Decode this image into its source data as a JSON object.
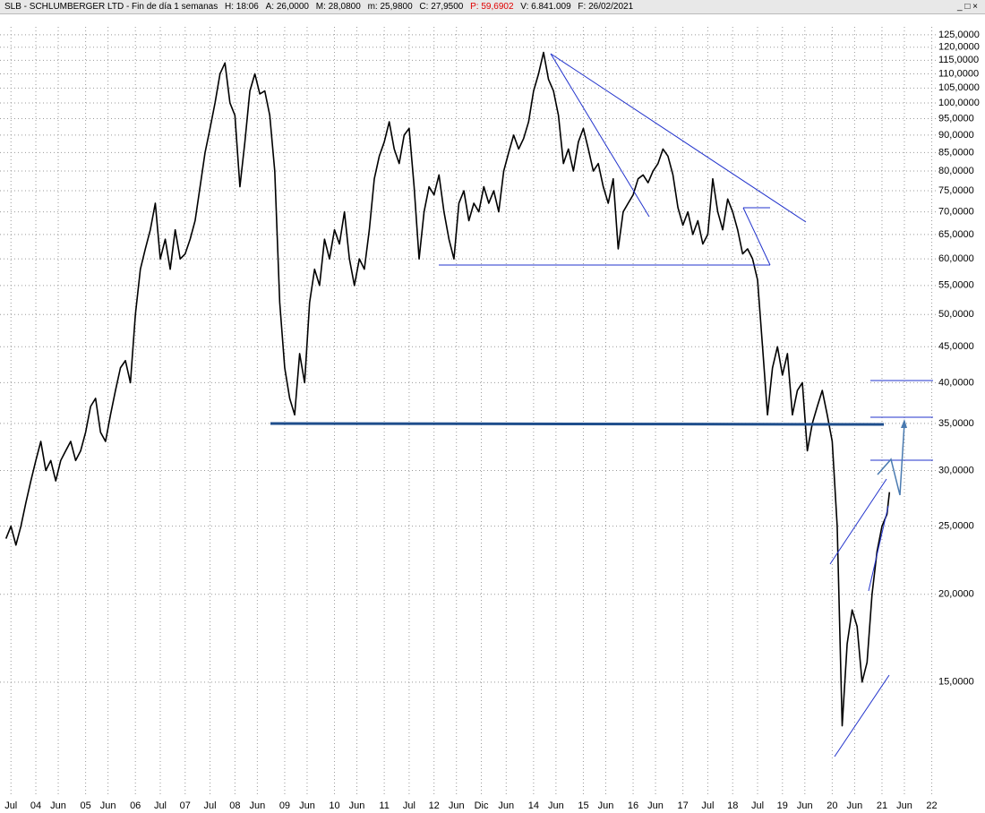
{
  "header": {
    "title": "SLB - SCHLUMBERGER LTD - Fin de día 1 semanas",
    "fields": [
      "H: 18:06",
      "A: 26,0000",
      "M: 28,0800",
      "m: 25,9800",
      "C: 27,9500",
      "P: 59,6902",
      "V: 6.841.009",
      "F: 26/02/2021"
    ]
  },
  "chart_data": {
    "type": "line",
    "color": "#000000",
    "log_scale": true,
    "grid": true,
    "x": [
      2003.4,
      2003.5,
      2003.6,
      2003.7,
      2003.8,
      2003.9,
      2004.0,
      2004.1,
      2004.2,
      2004.3,
      2004.4,
      2004.5,
      2004.6,
      2004.7,
      2004.8,
      2004.9,
      2005.0,
      2005.1,
      2005.2,
      2005.3,
      2005.4,
      2005.5,
      2005.6,
      2005.7,
      2005.8,
      2005.9,
      2006.0,
      2006.1,
      2006.2,
      2006.3,
      2006.4,
      2006.5,
      2006.6,
      2006.7,
      2006.8,
      2006.9,
      2007.0,
      2007.1,
      2007.2,
      2007.3,
      2007.4,
      2007.5,
      2007.6,
      2007.7,
      2007.8,
      2007.9,
      2008.0,
      2008.1,
      2008.2,
      2008.3,
      2008.4,
      2008.5,
      2008.6,
      2008.7,
      2008.8,
      2008.9,
      2009.0,
      2009.1,
      2009.2,
      2009.3,
      2009.4,
      2009.5,
      2009.6,
      2009.7,
      2009.8,
      2009.9,
      2010.0,
      2010.1,
      2010.2,
      2010.3,
      2010.4,
      2010.5,
      2010.6,
      2010.7,
      2010.8,
      2010.9,
      2011.0,
      2011.1,
      2011.2,
      2011.3,
      2011.4,
      2011.5,
      2011.6,
      2011.7,
      2011.8,
      2011.9,
      2012.0,
      2012.1,
      2012.2,
      2012.3,
      2012.4,
      2012.5,
      2012.6,
      2012.7,
      2012.8,
      2012.9,
      2013.0,
      2013.1,
      2013.2,
      2013.3,
      2013.4,
      2013.5,
      2013.6,
      2013.7,
      2013.8,
      2013.9,
      2014.0,
      2014.1,
      2014.2,
      2014.3,
      2014.4,
      2014.5,
      2014.6,
      2014.7,
      2014.8,
      2014.9,
      2015.0,
      2015.1,
      2015.2,
      2015.3,
      2015.4,
      2015.5,
      2015.6,
      2015.7,
      2015.8,
      2015.9,
      2016.0,
      2016.1,
      2016.2,
      2016.3,
      2016.4,
      2016.5,
      2016.6,
      2016.7,
      2016.8,
      2016.9,
      2017.0,
      2017.1,
      2017.2,
      2017.3,
      2017.4,
      2017.5,
      2017.6,
      2017.7,
      2017.8,
      2017.9,
      2018.0,
      2018.1,
      2018.2,
      2018.3,
      2018.4,
      2018.5,
      2018.6,
      2018.7,
      2018.8,
      2018.9,
      2019.0,
      2019.1,
      2019.2,
      2019.3,
      2019.4,
      2019.5,
      2019.6,
      2019.7,
      2019.8,
      2019.9,
      2020.0,
      2020.1,
      2020.2,
      2020.3,
      2020.4,
      2020.5,
      2020.6,
      2020.7,
      2020.8,
      2020.9,
      2021.0,
      2021.1,
      2021.15
    ],
    "values": [
      24,
      25,
      23.5,
      25,
      27,
      29,
      31,
      33,
      30,
      31,
      29,
      31,
      32,
      33,
      31,
      32,
      34,
      37,
      38,
      34,
      33,
      36,
      39,
      42,
      43,
      40,
      50,
      58,
      62,
      66,
      72,
      60,
      64,
      58,
      66,
      60,
      61,
      64,
      68,
      76,
      85,
      92,
      100,
      110,
      114,
      100,
      96,
      76,
      88,
      104,
      110,
      103,
      104,
      96,
      80,
      52,
      42,
      38,
      36,
      44,
      40,
      52,
      58,
      55,
      64,
      60,
      66,
      63,
      70,
      60,
      55,
      60,
      58,
      66,
      78,
      84,
      88,
      94,
      86,
      82,
      90,
      92,
      76,
      60,
      70,
      76,
      74,
      79,
      70,
      64,
      60,
      72,
      75,
      68,
      72,
      70,
      76,
      72,
      75,
      70,
      80,
      85,
      90,
      86,
      89,
      94,
      104,
      110,
      118,
      108,
      104,
      96,
      82,
      86,
      80,
      88,
      92,
      86,
      80,
      82,
      76,
      72,
      78,
      62,
      70,
      72,
      74,
      78,
      79,
      77,
      80,
      82,
      86,
      84,
      79,
      71,
      67,
      70,
      65,
      68,
      63,
      65,
      78,
      70,
      66,
      73,
      70,
      66,
      61,
      62,
      60,
      56,
      45,
      36,
      42,
      45,
      41,
      44,
      36,
      39,
      40,
      32,
      35,
      37,
      39,
      36,
      33,
      25,
      13,
      17,
      19,
      18,
      15,
      16,
      20,
      23,
      25,
      26,
      27.95
    ],
    "xlim": [
      2003.28,
      2022.08
    ],
    "xticks": [
      {
        "value": 2003.5,
        "label": "Jul"
      },
      {
        "value": 2004,
        "label": "04"
      },
      {
        "value": 2004.45,
        "label": "Jun"
      },
      {
        "value": 2005,
        "label": "05"
      },
      {
        "value": 2005.45,
        "label": "Jun"
      },
      {
        "value": 2006,
        "label": "06"
      },
      {
        "value": 2006.5,
        "label": "Jul"
      },
      {
        "value": 2007,
        "label": "07"
      },
      {
        "value": 2007.5,
        "label": "Jul"
      },
      {
        "value": 2008,
        "label": "08"
      },
      {
        "value": 2008.45,
        "label": "Jun"
      },
      {
        "value": 2009,
        "label": "09"
      },
      {
        "value": 2009.45,
        "label": "Jun"
      },
      {
        "value": 2010,
        "label": "10"
      },
      {
        "value": 2010.45,
        "label": "Jun"
      },
      {
        "value": 2011,
        "label": "11"
      },
      {
        "value": 2011.5,
        "label": "Jul"
      },
      {
        "value": 2012,
        "label": "12"
      },
      {
        "value": 2012.45,
        "label": "Jun"
      },
      {
        "value": 2012.95,
        "label": "Dic"
      },
      {
        "value": 2013.45,
        "label": "Jun"
      },
      {
        "value": 2014,
        "label": "14"
      },
      {
        "value": 2014.45,
        "label": "Jun"
      },
      {
        "value": 2015,
        "label": "15"
      },
      {
        "value": 2015.45,
        "label": "Jun"
      },
      {
        "value": 2016,
        "label": "16"
      },
      {
        "value": 2016.45,
        "label": "Jun"
      },
      {
        "value": 2017,
        "label": "17"
      },
      {
        "value": 2017.5,
        "label": "Jul"
      },
      {
        "value": 2018,
        "label": "18"
      },
      {
        "value": 2018.5,
        "label": "Jul"
      },
      {
        "value": 2019,
        "label": "19"
      },
      {
        "value": 2019.45,
        "label": "Jun"
      },
      {
        "value": 2020,
        "label": "20"
      },
      {
        "value": 2020.45,
        "label": "Jun"
      },
      {
        "value": 2021,
        "label": "21"
      },
      {
        "value": 2021.45,
        "label": "Jun"
      },
      {
        "value": 2022,
        "label": "22"
      }
    ],
    "ylim": [
      10.3,
      128.3
    ],
    "yticks": [
      {
        "value": 15,
        "label": "15,0000"
      },
      {
        "value": 20,
        "label": "20,0000"
      },
      {
        "value": 25,
        "label": "25,0000"
      },
      {
        "value": 30,
        "label": "30,0000"
      },
      {
        "value": 35,
        "label": "35,0000"
      },
      {
        "value": 40,
        "label": "40,0000"
      },
      {
        "value": 45,
        "label": "45,0000"
      },
      {
        "value": 50,
        "label": "50,0000"
      },
      {
        "value": 55,
        "label": "55,0000"
      },
      {
        "value": 60,
        "label": "60,0000"
      },
      {
        "value": 65,
        "label": "65,0000"
      },
      {
        "value": 70,
        "label": "70,0000"
      },
      {
        "value": 75,
        "label": "75,0000"
      },
      {
        "value": 80,
        "label": "80,0000"
      },
      {
        "value": 85,
        "label": "85,0000"
      },
      {
        "value": 90,
        "label": "90,0000"
      },
      {
        "value": 95,
        "label": "95,0000"
      },
      {
        "value": 100,
        "label": "100,0000"
      },
      {
        "value": 105,
        "label": "105,0000"
      },
      {
        "value": 110,
        "label": "110,0000"
      },
      {
        "value": 115,
        "label": "115,0000"
      },
      {
        "value": 120,
        "label": "120,0000"
      },
      {
        "value": 125,
        "label": "125,0000"
      }
    ]
  }
}
